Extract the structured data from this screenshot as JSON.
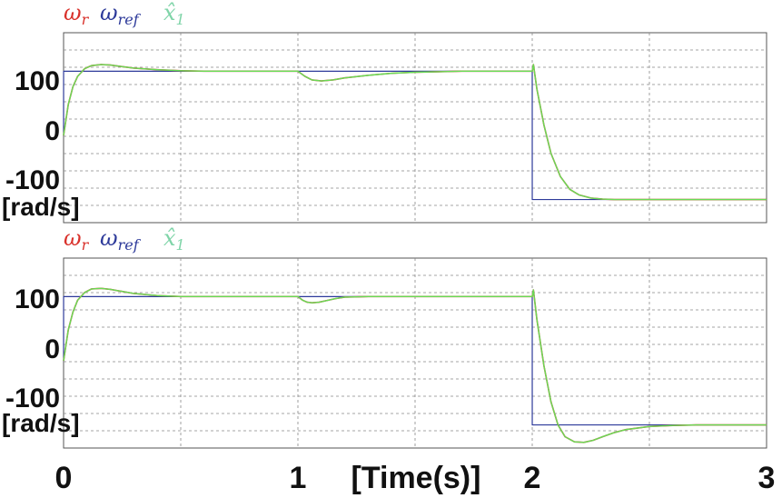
{
  "chart_data": [
    {
      "type": "line",
      "legend_position": "top-left",
      "legend": [
        {
          "symbol": "ω",
          "sub": "r",
          "color": "#d9312b"
        },
        {
          "symbol": "ω",
          "sub": "ref",
          "color": "#2d3a9a"
        },
        {
          "symbol": "x̂",
          "sub": "1",
          "color": "#7fd4a8"
        }
      ],
      "ylabel": "[rad/s]",
      "xlim": [
        0,
        3
      ],
      "ylim": [
        -170,
        200
      ],
      "yticks": [
        "100",
        "0",
        "-100"
      ],
      "ytick_values": [
        100,
        0,
        -100
      ],
      "grid": true,
      "series": [
        {
          "name": "ω_ref",
          "color": "#2d3a9a",
          "x": [
            0,
            0.0001,
            1.0,
            1.0001,
            2.0,
            2.0001,
            3.0
          ],
          "y": [
            0,
            125,
            125,
            125,
            125,
            -125,
            -125
          ]
        },
        {
          "name": "ω_r",
          "color": "#d9312b",
          "x": [
            0,
            0.02,
            0.04,
            0.06,
            0.09,
            0.12,
            0.16,
            0.2,
            0.25,
            0.3,
            0.4,
            0.5,
            0.6,
            0.7,
            0.8,
            0.9,
            1.0,
            1.03,
            1.06,
            1.1,
            1.15,
            1.2,
            1.3,
            1.4,
            1.5,
            1.6,
            1.7,
            1.8,
            1.9,
            2.0,
            2.005,
            2.02,
            2.05,
            2.08,
            2.12,
            2.16,
            2.2,
            2.25,
            2.3,
            2.35,
            2.4,
            2.5,
            2.6,
            2.8,
            3.0
          ],
          "y": [
            0,
            60,
            95,
            115,
            130,
            136,
            138,
            137,
            134,
            131,
            128,
            126,
            125,
            125,
            125,
            125,
            125,
            115,
            108,
            106,
            108,
            112,
            117,
            121,
            123,
            124,
            125,
            125,
            125,
            125,
            138,
            90,
            20,
            -35,
            -80,
            -105,
            -116,
            -122,
            -124,
            -125,
            -125,
            -125,
            -125,
            -125,
            -125
          ]
        },
        {
          "name": "x̂_1",
          "color": "#66dd55",
          "x": [
            0,
            0.02,
            0.04,
            0.06,
            0.09,
            0.12,
            0.16,
            0.2,
            0.25,
            0.3,
            0.4,
            0.5,
            0.6,
            0.7,
            0.8,
            0.9,
            1.0,
            1.03,
            1.06,
            1.1,
            1.15,
            1.2,
            1.3,
            1.4,
            1.5,
            1.6,
            1.7,
            1.8,
            1.9,
            2.0,
            2.005,
            2.02,
            2.05,
            2.08,
            2.12,
            2.16,
            2.2,
            2.25,
            2.3,
            2.35,
            2.4,
            2.5,
            2.6,
            2.8,
            3.0
          ],
          "y": [
            0,
            60,
            95,
            115,
            130,
            136,
            138,
            137,
            134,
            131,
            128,
            126,
            125,
            125,
            125,
            125,
            125,
            115,
            108,
            106,
            108,
            112,
            117,
            121,
            123,
            124,
            125,
            125,
            125,
            125,
            138,
            90,
            20,
            -35,
            -80,
            -105,
            -116,
            -122,
            -124,
            -125,
            -125,
            -125,
            -125,
            -125,
            -125
          ]
        }
      ]
    },
    {
      "type": "line",
      "legend_position": "top-left",
      "legend": [
        {
          "symbol": "ω",
          "sub": "r",
          "color": "#d9312b"
        },
        {
          "symbol": "ω",
          "sub": "ref",
          "color": "#2d3a9a"
        },
        {
          "symbol": "x̂",
          "sub": "1",
          "color": "#7fd4a8"
        }
      ],
      "ylabel": "[rad/s]",
      "xlabel": "[Time(s)]",
      "xticks": [
        "0",
        "1",
        "2",
        "3"
      ],
      "xtick_values": [
        0,
        1,
        2,
        3
      ],
      "xlim": [
        0,
        3
      ],
      "ylim": [
        -170,
        200
      ],
      "yticks": [
        "100",
        "0",
        "-100"
      ],
      "ytick_values": [
        100,
        0,
        -100
      ],
      "grid": true,
      "series": [
        {
          "name": "ω_ref",
          "color": "#2d3a9a",
          "x": [
            0,
            0.0001,
            1.0,
            1.0001,
            2.0,
            2.0001,
            3.0
          ],
          "y": [
            0,
            125,
            125,
            125,
            125,
            -125,
            -125
          ]
        },
        {
          "name": "ω_r",
          "color": "#d9312b",
          "x": [
            0,
            0.02,
            0.04,
            0.06,
            0.09,
            0.12,
            0.16,
            0.2,
            0.25,
            0.3,
            0.35,
            0.4,
            0.5,
            0.6,
            0.7,
            0.8,
            0.9,
            1.0,
            1.02,
            1.04,
            1.06,
            1.09,
            1.12,
            1.16,
            1.2,
            1.3,
            1.5,
            1.7,
            1.9,
            2.0,
            2.005,
            2.02,
            2.05,
            2.08,
            2.11,
            2.14,
            2.18,
            2.22,
            2.26,
            2.3,
            2.35,
            2.4,
            2.5,
            2.6,
            2.7,
            2.8,
            3.0
          ],
          "y": [
            0,
            60,
            95,
            118,
            133,
            140,
            141,
            139,
            135,
            131,
            129,
            127,
            125,
            125,
            125,
            125,
            125,
            125,
            118,
            114,
            113,
            114,
            117,
            121,
            124,
            125,
            125,
            125,
            125,
            125,
            138,
            80,
            -10,
            -80,
            -125,
            -148,
            -158,
            -159,
            -155,
            -148,
            -140,
            -134,
            -128,
            -126,
            -125,
            -125,
            -125
          ]
        },
        {
          "name": "x̂_1",
          "color": "#66dd55",
          "x": [
            0,
            0.02,
            0.04,
            0.06,
            0.09,
            0.12,
            0.16,
            0.2,
            0.25,
            0.3,
            0.35,
            0.4,
            0.5,
            0.6,
            0.7,
            0.8,
            0.9,
            1.0,
            1.02,
            1.04,
            1.06,
            1.09,
            1.12,
            1.16,
            1.2,
            1.3,
            1.5,
            1.7,
            1.9,
            2.0,
            2.005,
            2.02,
            2.05,
            2.08,
            2.11,
            2.14,
            2.18,
            2.22,
            2.26,
            2.3,
            2.35,
            2.4,
            2.5,
            2.6,
            2.7,
            2.8,
            3.0
          ],
          "y": [
            0,
            60,
            95,
            118,
            133,
            140,
            141,
            139,
            135,
            131,
            129,
            127,
            125,
            125,
            125,
            125,
            125,
            125,
            118,
            114,
            113,
            114,
            117,
            121,
            124,
            125,
            125,
            125,
            125,
            125,
            138,
            80,
            -10,
            -80,
            -125,
            -148,
            -158,
            -159,
            -155,
            -148,
            -140,
            -134,
            -128,
            -126,
            -125,
            -125,
            -125
          ]
        }
      ]
    }
  ]
}
